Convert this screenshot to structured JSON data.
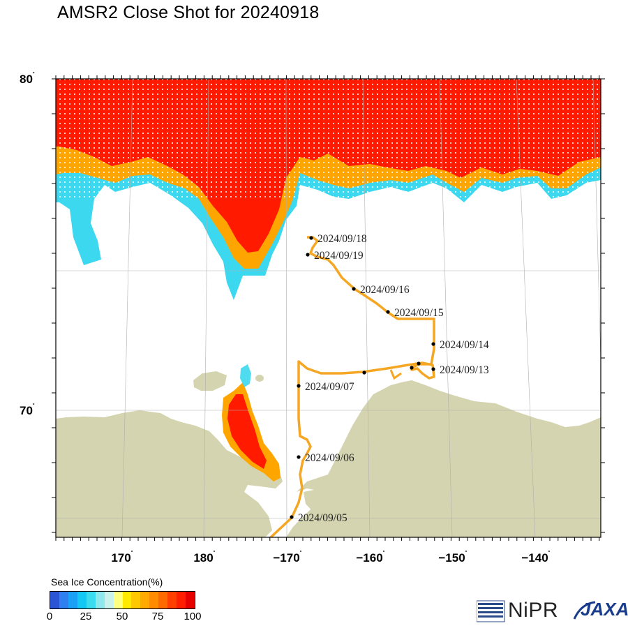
{
  "title": "AMSR2 Close Shot for 20240918",
  "lat_labels": [
    {
      "id": "80",
      "text": "80"
    },
    {
      "id": "70",
      "text": "70"
    }
  ],
  "lon_labels": [
    {
      "id": "170",
      "text": "170"
    },
    {
      "id": "180",
      "text": "180"
    },
    {
      "id": "m170",
      "text": "−170"
    },
    {
      "id": "m160",
      "text": "−160"
    },
    {
      "id": "m150",
      "text": "−150"
    },
    {
      "id": "m140",
      "text": "−140"
    }
  ],
  "degree_symbol": "˚",
  "track_dates": [
    "2024/09/18",
    "2024/09/19",
    "2024/09/16",
    "2024/09/15",
    "2024/09/14",
    "2024/09/13",
    "2024/09/07",
    "2024/09/06",
    "2024/09/05"
  ],
  "legend": {
    "title": "Sea Ice Concentration(%)",
    "ticks": [
      "0",
      "25",
      "50",
      "75",
      "100"
    ],
    "colors": [
      "#2a56d6",
      "#2f7ff0",
      "#1aa0f5",
      "#14c8f5",
      "#3cdcf0",
      "#8ee8ee",
      "#c8f2ea",
      "#ffff80",
      "#ffea00",
      "#ffc800",
      "#ffaa00",
      "#ff8c00",
      "#ff6a00",
      "#ff4000",
      "#ff1e00",
      "#e60000"
    ]
  },
  "colors": {
    "land": "#d4d4b0",
    "track": "#f5a623",
    "ice_high": "#ff1a00",
    "ice_mid": "#ffa500",
    "ice_low": "#3cd8f0"
  },
  "logos": {
    "nipr": "NiPR",
    "jaxa": "JAXA"
  }
}
